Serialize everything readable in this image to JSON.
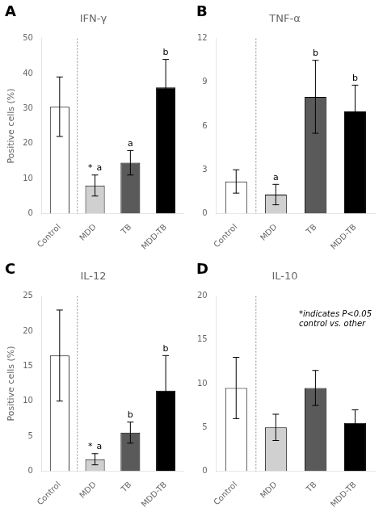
{
  "chart_data": [
    {
      "type": "bar",
      "panel_label": "A",
      "title": "IFN-γ",
      "ylabel": "Positive cells (%)",
      "categories": [
        "Control",
        "MDD",
        "TB",
        "MDD-TB"
      ],
      "values": [
        30.5,
        8.0,
        14.5,
        36.0
      ],
      "errors": [
        8.5,
        3.0,
        3.5,
        8.0
      ],
      "colors": [
        "#ffffff",
        "#d0d0d0",
        "#5a5a5a",
        "#000000"
      ],
      "ylim": [
        0,
        50
      ],
      "yticks": [
        0,
        10,
        20,
        30,
        40,
        50
      ],
      "grid": false,
      "annotations": [
        {
          "category": "MDD",
          "text": "*"
        },
        {
          "category": "MDD",
          "text": "a"
        },
        {
          "category": "TB",
          "text": "a"
        },
        {
          "category": "MDD-TB",
          "text": "b"
        }
      ]
    },
    {
      "type": "bar",
      "panel_label": "B",
      "title": "TNF-α",
      "categories": [
        "Control",
        "MDD",
        "TB",
        "MDD-TB"
      ],
      "values": [
        2.2,
        1.3,
        8.0,
        7.0
      ],
      "errors": [
        0.8,
        0.7,
        2.5,
        1.8
      ],
      "colors": [
        "#ffffff",
        "#d0d0d0",
        "#5a5a5a",
        "#000000"
      ],
      "ylim": [
        0,
        12
      ],
      "yticks": [
        0,
        3,
        6,
        9,
        12
      ],
      "grid": false,
      "annotations": [
        {
          "category": "MDD",
          "text": "a"
        },
        {
          "category": "TB",
          "text": "b"
        },
        {
          "category": "MDD-TB",
          "text": "b"
        }
      ]
    },
    {
      "type": "bar",
      "panel_label": "C",
      "title": "IL-12",
      "ylabel": "Positive cells (%)",
      "categories": [
        "Control",
        "MDD",
        "TB",
        "MDD-TB"
      ],
      "values": [
        16.5,
        1.7,
        5.5,
        11.5
      ],
      "errors": [
        6.5,
        0.8,
        1.5,
        5.0
      ],
      "colors": [
        "#ffffff",
        "#d0d0d0",
        "#5a5a5a",
        "#000000"
      ],
      "ylim": [
        0,
        25
      ],
      "yticks": [
        0,
        5,
        10,
        15,
        20,
        25
      ],
      "grid": false,
      "annotations": [
        {
          "category": "MDD",
          "text": "*"
        },
        {
          "category": "MDD",
          "text": "a"
        },
        {
          "category": "TB",
          "text": "b"
        },
        {
          "category": "MDD-TB",
          "text": "b"
        }
      ]
    },
    {
      "type": "bar",
      "panel_label": "D",
      "title": "IL-10",
      "categories": [
        "Control",
        "MDD",
        "TB",
        "MDD-TB"
      ],
      "values": [
        9.5,
        5.0,
        9.5,
        5.5
      ],
      "errors": [
        3.5,
        1.5,
        2.0,
        1.5
      ],
      "colors": [
        "#ffffff",
        "#d0d0d0",
        "#5a5a5a",
        "#000000"
      ],
      "ylim": [
        0,
        20
      ],
      "yticks": [
        0,
        5,
        10,
        15,
        20
      ],
      "grid": false,
      "note": "*indicates P<0.05\ncontrol vs. other"
    }
  ]
}
